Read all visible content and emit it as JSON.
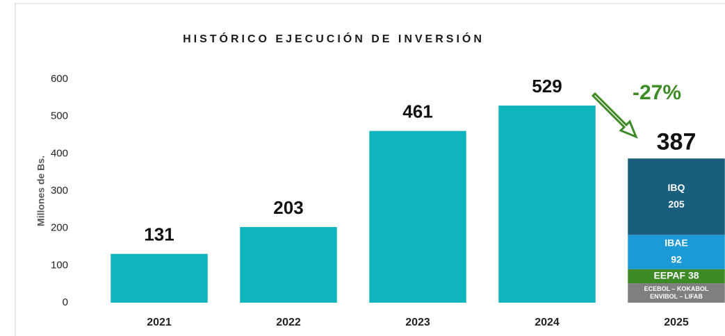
{
  "chart_data": {
    "type": "bar",
    "title": "HISTÓRICO EJECUCIÓN DE INVERSIÓN",
    "y_label": "Millones de Bs.",
    "categories": [
      "2021",
      "2022",
      "2023",
      "2024",
      "2025"
    ],
    "values": [
      131,
      203,
      461,
      529,
      387
    ],
    "color": "#10b4bc",
    "stack": {
      "category": 4,
      "segments": [
        {
          "labels": [
            "ECEBOL – KOKABOL",
            "ENVIBOL – LIFAB"
          ],
          "value": 52,
          "color": "#7f7f7f"
        },
        {
          "labels": [
            "EEPAF 38"
          ],
          "value": 38,
          "color": "#3e8a27"
        },
        {
          "labels": [
            "IBAE"
          ],
          "value": 92,
          "value_label": "92",
          "color": "#1b9ad6"
        },
        {
          "labels": [
            "IBQ"
          ],
          "value": 205,
          "value_label": "205",
          "color": "#1a5e7d"
        }
      ]
    },
    "annotation": "-27%",
    "annotation_color": "#3e8a27",
    "ylim": [
      0,
      600
    ],
    "yticks": [
      0,
      100,
      200,
      300,
      400,
      500,
      600
    ],
    "grid": false
  }
}
